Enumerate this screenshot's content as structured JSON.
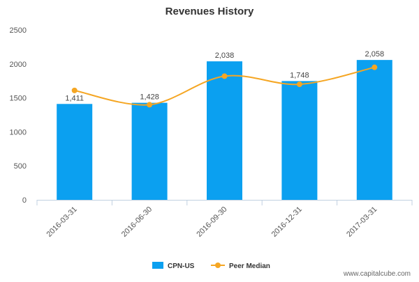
{
  "chart_data": {
    "type": "bar",
    "title": "Revenues History",
    "categories": [
      "2016-03-31",
      "2016-06-30",
      "2016-09-30",
      "2016-12-31",
      "2017-03-31"
    ],
    "series": [
      {
        "name": "CPN-US",
        "kind": "bar",
        "color": "#0ba0f0",
        "values": [
          1411,
          1428,
          2038,
          1748,
          2058
        ],
        "labels": [
          "1,411",
          "1,428",
          "2,038",
          "1,748",
          "2,058"
        ]
      },
      {
        "name": "Peer Median",
        "kind": "line",
        "color": "#f5a623",
        "values": [
          1610,
          1400,
          1820,
          1700,
          1950
        ]
      }
    ],
    "yticks": [
      0,
      500,
      1000,
      1500,
      2000,
      2500
    ],
    "ytick_labels": [
      "0",
      "500",
      "1000",
      "1500",
      "2000",
      "2500"
    ],
    "ylim": [
      0,
      2500
    ],
    "xlabel": "",
    "ylabel": "",
    "grid": false,
    "legend_position": "bottom-center"
  },
  "watermark": "www.capitalcube.com"
}
